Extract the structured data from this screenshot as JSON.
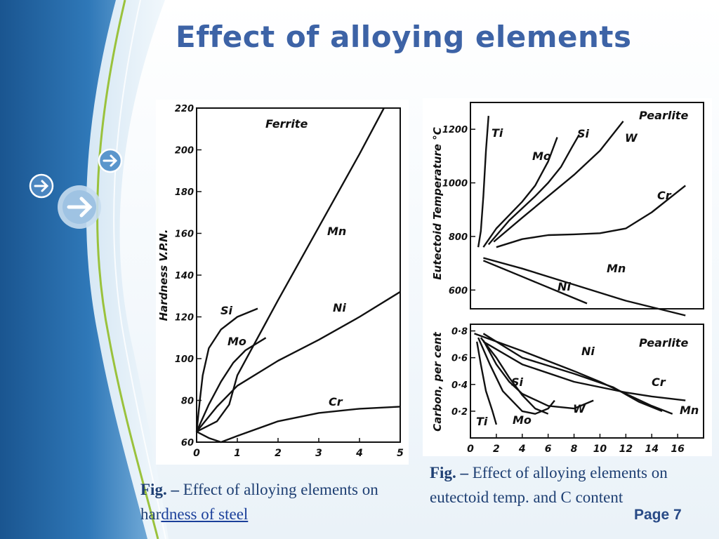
{
  "slide": {
    "title": "Effect of alloying elements",
    "page_number": "Page 7",
    "colors": {
      "title": "#3d63a6",
      "sidebar_blue": "#1f5c9a",
      "sidebar_light": "#d7e8f4",
      "accent_green": "#9ac23c"
    },
    "icons": [
      "arrow-right-circle-icon",
      "arrow-right-circle-icon",
      "arrow-right-circle-icon"
    ]
  },
  "captions": {
    "left": {
      "prefix": "Fig. –",
      "text_plain": " Effect of alloying elements on har",
      "text_underlined": "dness of steel"
    },
    "right": {
      "prefix": "Fig. –",
      "text": " Effect of alloying elements on eutectoid temp. and C content"
    }
  },
  "chart_data": [
    {
      "type": "line",
      "label": "Ferrite",
      "ylabel": "Hardness V.P.N.",
      "xlabel": "",
      "xlim": [
        0,
        5
      ],
      "ylim": [
        60,
        220
      ],
      "xticks": [
        0,
        1,
        2,
        3,
        4,
        5
      ],
      "yticks": [
        60,
        80,
        100,
        120,
        140,
        160,
        180,
        200,
        220
      ],
      "grid": false,
      "series": [
        {
          "name": "Mn",
          "x": [
            0,
            0.5,
            0.8,
            1.0,
            2.0,
            3.0,
            4.0,
            4.6
          ],
          "y": [
            65,
            70,
            78,
            92,
            128,
            163,
            198,
            220
          ]
        },
        {
          "name": "Ni",
          "x": [
            0,
            0.5,
            1,
            2,
            3,
            4,
            5
          ],
          "y": [
            65,
            77,
            87,
            99,
            109,
            120,
            132
          ]
        },
        {
          "name": "Si",
          "x": [
            0,
            0.08,
            0.15,
            0.3,
            0.6,
            1.0,
            1.5
          ],
          "y": [
            65,
            80,
            92,
            105,
            114,
            120,
            124
          ]
        },
        {
          "name": "Mo",
          "x": [
            0,
            0.3,
            0.6,
            0.9,
            1.2,
            1.7
          ],
          "y": [
            65,
            78,
            89,
            98,
            104,
            110
          ]
        },
        {
          "name": "Cr",
          "x": [
            0,
            0.3,
            0.6,
            1,
            2,
            3,
            4,
            5
          ],
          "y": [
            65,
            62,
            60,
            63,
            70,
            74,
            76,
            77
          ]
        }
      ],
      "annotations": [
        "Ferrite",
        "Mn",
        "Ni",
        "Si",
        "Mo",
        "Cr"
      ]
    },
    {
      "type": "line",
      "label": "Pearlite",
      "ylabel": "Eutectoid Temperature °C",
      "xlim": [
        0,
        18
      ],
      "ylim": [
        530,
        1300
      ],
      "yticks": [
        600,
        800,
        1000,
        1200
      ],
      "grid": false,
      "series": [
        {
          "name": "Ti",
          "x": [
            0.6,
            0.8,
            1.0,
            1.2,
            1.4
          ],
          "y": [
            760,
            820,
            950,
            1120,
            1250
          ]
        },
        {
          "name": "Mo",
          "x": [
            1.0,
            2,
            3,
            4,
            5,
            6,
            6.7
          ],
          "y": [
            760,
            830,
            880,
            930,
            990,
            1080,
            1170
          ]
        },
        {
          "name": "Si",
          "x": [
            1.4,
            3,
            5,
            6,
            7,
            7.8,
            8.4
          ],
          "y": [
            770,
            860,
            950,
            1000,
            1060,
            1130,
            1180
          ]
        },
        {
          "name": "W",
          "x": [
            1.8,
            4,
            6,
            8,
            10,
            11.8
          ],
          "y": [
            780,
            870,
            950,
            1030,
            1120,
            1230
          ]
        },
        {
          "name": "Cr",
          "x": [
            2,
            4,
            6,
            8,
            10,
            12,
            14,
            16.6
          ],
          "y": [
            760,
            790,
            805,
            808,
            812,
            830,
            890,
            990
          ]
        },
        {
          "name": "Mn",
          "x": [
            1,
            4,
            8,
            12,
            16.6
          ],
          "y": [
            720,
            680,
            620,
            560,
            505
          ]
        },
        {
          "name": "Ni",
          "x": [
            1,
            4,
            7,
            9
          ],
          "y": [
            710,
            650,
            590,
            550
          ]
        }
      ],
      "annotations": [
        "Pearlite",
        "Ti",
        "Mo",
        "Si",
        "W",
        "Cr",
        "Mn",
        "Ni"
      ]
    },
    {
      "type": "line",
      "label": "Pearlite",
      "ylabel": "Carbon, per cent",
      "xlabel": "",
      "xlim": [
        0,
        18
      ],
      "ylim": [
        0,
        0.85
      ],
      "xticks": [
        0,
        2,
        4,
        6,
        8,
        10,
        12,
        14,
        16
      ],
      "yticks": [
        0.2,
        0.4,
        0.6,
        0.8
      ],
      "ytick_labels": [
        "0·2",
        "0·4",
        "0·6",
        "0·8"
      ],
      "grid": false,
      "series": [
        {
          "name": "Ti",
          "x": [
            0.5,
            0.8,
            1.2,
            1.7,
            2.0
          ],
          "y": [
            0.72,
            0.55,
            0.35,
            0.2,
            0.1
          ]
        },
        {
          "name": "Mo",
          "x": [
            0.6,
            1.5,
            2.5,
            4,
            5,
            6,
            6.5
          ],
          "y": [
            0.75,
            0.55,
            0.35,
            0.2,
            0.18,
            0.22,
            0.28
          ]
        },
        {
          "name": "Si",
          "x": [
            0.8,
            2,
            3,
            4,
            5,
            6
          ],
          "y": [
            0.75,
            0.6,
            0.45,
            0.32,
            0.22,
            0.18
          ]
        },
        {
          "name": "W",
          "x": [
            1,
            2,
            3,
            4,
            6,
            8,
            9.5
          ],
          "y": [
            0.73,
            0.55,
            0.42,
            0.33,
            0.24,
            0.22,
            0.28
          ]
        },
        {
          "name": "Ni",
          "x": [
            0.3,
            4,
            8,
            10,
            12,
            14,
            15.6
          ],
          "y": [
            0.78,
            0.65,
            0.5,
            0.42,
            0.33,
            0.24,
            0.18
          ]
        },
        {
          "name": "Cr",
          "x": [
            1,
            4,
            8,
            12,
            14,
            16.6
          ],
          "y": [
            0.72,
            0.55,
            0.42,
            0.34,
            0.31,
            0.28
          ]
        },
        {
          "name": "Mn",
          "x": [
            1,
            4,
            8,
            11,
            13,
            14.8
          ],
          "y": [
            0.78,
            0.6,
            0.48,
            0.38,
            0.27,
            0.2
          ]
        }
      ],
      "annotations": [
        "Pearlite",
        "Ti",
        "Mo",
        "Si",
        "W",
        "Ni",
        "Cr",
        "Mn"
      ]
    }
  ]
}
